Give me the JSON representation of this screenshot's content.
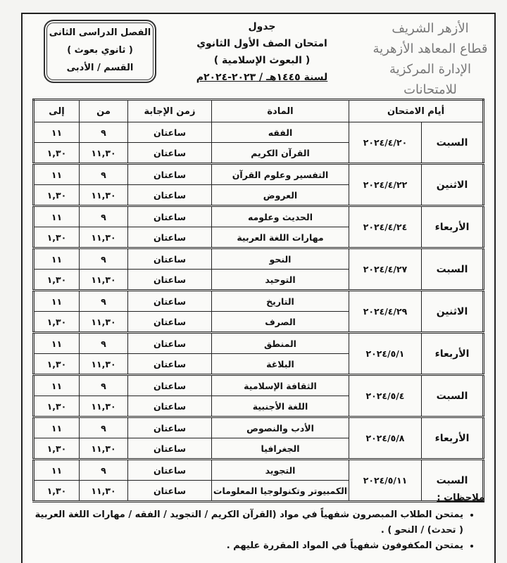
{
  "header": {
    "logo_lines": [
      "الأزهر الشريف",
      "قطاع المعاهد الأزهرية",
      "الإدارة المركزية للامتحانات"
    ],
    "title_lines": [
      "جدول",
      "امتحان الصف الأول الثانوي",
      "( البعوث الإسلامية )"
    ],
    "year": "لسنة ١٤٤٥هـ / ٢٠٢٣-٢٠٢٤م",
    "box_lines": [
      "الفصل الدراسى الثانى",
      "( ثانوي بعوث )",
      "القسم / الأدبى"
    ]
  },
  "table": {
    "headers": [
      "أيام الامتحان",
      "المادة",
      "زمن الإجابة",
      "من",
      "إلى"
    ],
    "days": [
      {
        "day": "السبت",
        "date": "٢٠٢٤/٤/٢٠",
        "rows": [
          {
            "subject": "الفقه",
            "duration": "ساعتان",
            "from": "٩",
            "to": "١١"
          },
          {
            "subject": "القرآن الكريم",
            "duration": "ساعتان",
            "from": "١١,٣٠",
            "to": "١,٣٠"
          }
        ]
      },
      {
        "day": "الاثنين",
        "date": "٢٠٢٤/٤/٢٢",
        "rows": [
          {
            "subject": "التفسير وعلوم القرآن",
            "duration": "ساعتان",
            "from": "٩",
            "to": "١١"
          },
          {
            "subject": "العروض",
            "duration": "ساعتان",
            "from": "١١,٣٠",
            "to": "١,٣٠"
          }
        ]
      },
      {
        "day": "الأربعاء",
        "date": "٢٠٢٤/٤/٢٤",
        "rows": [
          {
            "subject": "الحديث وعلومه",
            "duration": "ساعتان",
            "from": "٩",
            "to": "١١"
          },
          {
            "subject": "مهارات اللغة العربية",
            "duration": "ساعتان",
            "from": "١١,٣٠",
            "to": "١,٣٠"
          }
        ]
      },
      {
        "day": "السبت",
        "date": "٢٠٢٤/٤/٢٧",
        "rows": [
          {
            "subject": "النحو",
            "duration": "ساعتان",
            "from": "٩",
            "to": "١١"
          },
          {
            "subject": "التوحيد",
            "duration": "ساعتان",
            "from": "١١,٣٠",
            "to": "١,٣٠"
          }
        ]
      },
      {
        "day": "الاثنين",
        "date": "٢٠٢٤/٤/٢٩",
        "rows": [
          {
            "subject": "التاريخ",
            "duration": "ساعتان",
            "from": "٩",
            "to": "١١"
          },
          {
            "subject": "الصرف",
            "duration": "ساعتان",
            "from": "١١,٣٠",
            "to": "١,٣٠"
          }
        ]
      },
      {
        "day": "الأربعاء",
        "date": "٢٠٢٤/٥/١",
        "rows": [
          {
            "subject": "المنطق",
            "duration": "ساعتان",
            "from": "٩",
            "to": "١١"
          },
          {
            "subject": "البلاغة",
            "duration": "ساعتان",
            "from": "١١,٣٠",
            "to": "١,٣٠"
          }
        ]
      },
      {
        "day": "السبت",
        "date": "٢٠٢٤/٥/٤",
        "rows": [
          {
            "subject": "الثقافة الإسلامية",
            "duration": "ساعتان",
            "from": "٩",
            "to": "١١"
          },
          {
            "subject": "اللغة الأجنبية",
            "duration": "ساعتان",
            "from": "١١,٣٠",
            "to": "١,٣٠"
          }
        ]
      },
      {
        "day": "الأربعاء",
        "date": "٢٠٢٤/٥/٨",
        "rows": [
          {
            "subject": "الأدب والنصوص",
            "duration": "ساعتان",
            "from": "٩",
            "to": "١١"
          },
          {
            "subject": "الجغرافيا",
            "duration": "ساعتان",
            "from": "١١,٣٠",
            "to": "١,٣٠"
          }
        ]
      },
      {
        "day": "السبت",
        "date": "٢٠٢٤/٥/١١",
        "rows": [
          {
            "subject": "التجويد",
            "duration": "ساعتان",
            "from": "٩",
            "to": "١١"
          },
          {
            "subject": "الكمبيوتر وتكنولوجيا المعلومات",
            "duration": "ساعتان",
            "from": "١١,٣٠",
            "to": "١,٣٠"
          }
        ]
      }
    ]
  },
  "notes": {
    "heading": "ملاحظات :",
    "items": [
      "يمتحن الطلاب المبصرون شفهياً في مواد (القرآن الكريم / التجويد / الفقه / مهارات اللغة العربية ( تحدث) / النحو ) .",
      "يمتحن المكفوفون شفهياً في المواد المقررة عليهم ."
    ]
  }
}
